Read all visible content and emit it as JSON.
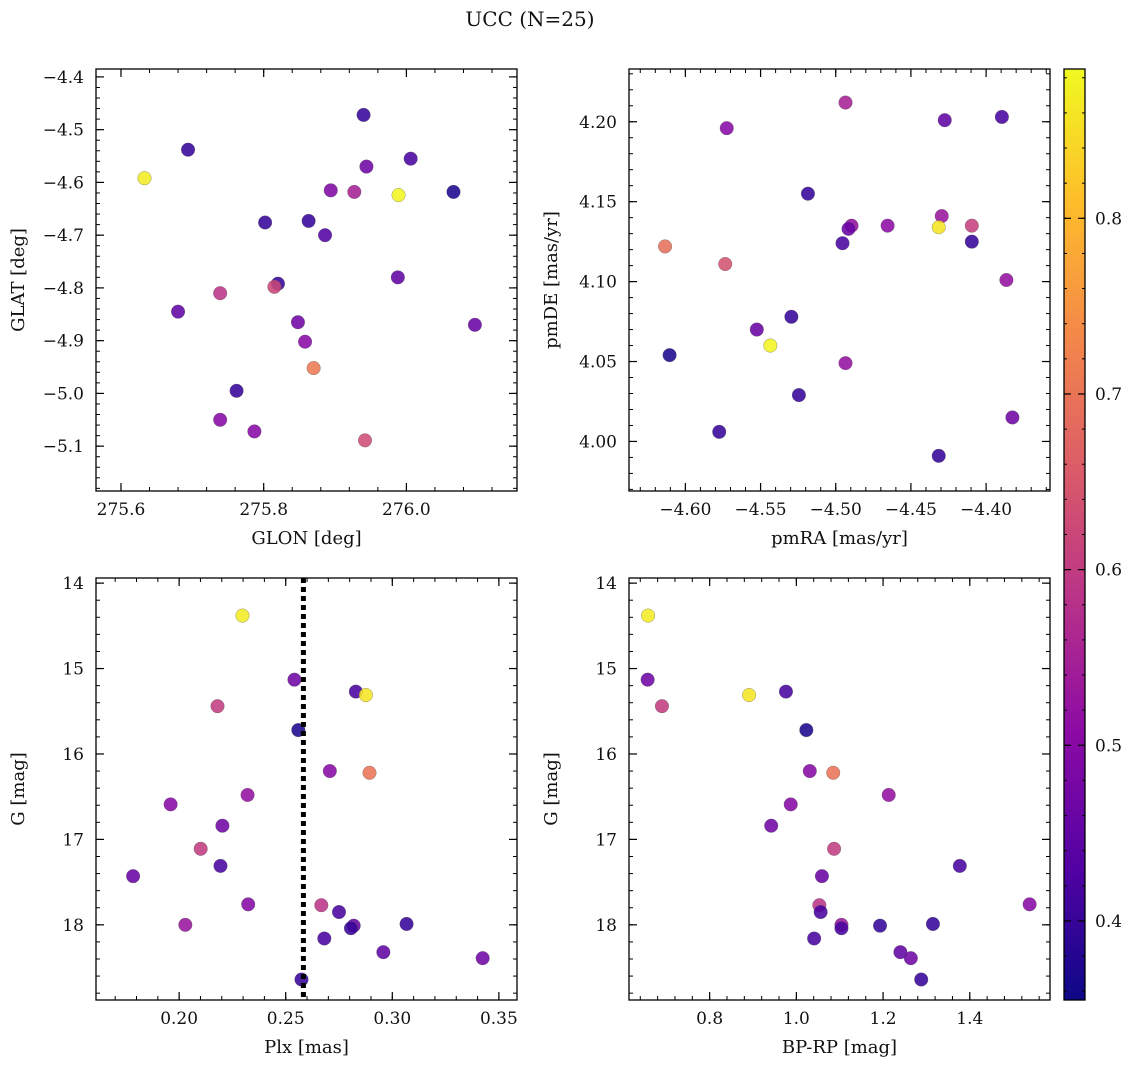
{
  "title": "UCC (N=25)",
  "colorbar": {
    "min": 0.355,
    "max": 0.885,
    "ticks": [
      0.4,
      0.5,
      0.6,
      0.7,
      0.8
    ],
    "tick_labels": [
      "0.4",
      "0.5",
      "0.6",
      "0.7",
      "0.8"
    ],
    "colormap": "plasma",
    "colors": [
      "#0d0887",
      "#5302a3",
      "#8b0aa5",
      "#b83289",
      "#db5c68",
      "#f48849",
      "#febd2a",
      "#f0f921"
    ]
  },
  "chart_data": [
    {
      "id": "glon-glat",
      "type": "scatter",
      "xlabel": "GLON [deg]",
      "ylabel": "GLAT [deg]",
      "xlim": [
        275.565,
        276.155
      ],
      "ylim": [
        -5.185,
        -4.385
      ],
      "invert_y": false,
      "xticks": [
        275.6,
        275.8,
        276.0
      ],
      "xtick_labels": [
        "275.6",
        "275.8",
        "276.0"
      ],
      "xtick_minor_step": 0.04,
      "yticks": [
        -5.1,
        -5.0,
        -4.9,
        -4.8,
        -4.7,
        -4.6,
        -4.5,
        -4.4
      ],
      "ytick_labels": [
        "−5.1",
        "−5.0",
        "−4.9",
        "−4.8",
        "−4.7",
        "−4.6",
        "−4.5",
        "−4.4"
      ],
      "ytick_minor_step": 0.02,
      "points": [
        {
          "x": 275.633,
          "y": -4.592,
          "c": 0.87
        },
        {
          "x": 275.694,
          "y": -4.538,
          "c": 0.4
        },
        {
          "x": 275.94,
          "y": -4.472,
          "c": 0.4
        },
        {
          "x": 275.944,
          "y": -4.57,
          "c": 0.47
        },
        {
          "x": 276.006,
          "y": -4.555,
          "c": 0.42
        },
        {
          "x": 275.894,
          "y": -4.615,
          "c": 0.49
        },
        {
          "x": 275.927,
          "y": -4.618,
          "c": 0.55
        },
        {
          "x": 275.989,
          "y": -4.624,
          "c": 0.88
        },
        {
          "x": 276.066,
          "y": -4.618,
          "c": 0.37
        },
        {
          "x": 275.802,
          "y": -4.676,
          "c": 0.4
        },
        {
          "x": 275.863,
          "y": -4.673,
          "c": 0.4
        },
        {
          "x": 275.886,
          "y": -4.7,
          "c": 0.43
        },
        {
          "x": 275.739,
          "y": -4.81,
          "c": 0.59
        },
        {
          "x": 275.82,
          "y": -4.792,
          "c": 0.4
        },
        {
          "x": 275.815,
          "y": -4.798,
          "c": 0.62
        },
        {
          "x": 275.988,
          "y": -4.78,
          "c": 0.45
        },
        {
          "x": 275.68,
          "y": -4.845,
          "c": 0.45
        },
        {
          "x": 275.848,
          "y": -4.865,
          "c": 0.47
        },
        {
          "x": 275.858,
          "y": -4.902,
          "c": 0.5
        },
        {
          "x": 276.096,
          "y": -4.87,
          "c": 0.46
        },
        {
          "x": 275.87,
          "y": -4.952,
          "c": 0.71
        },
        {
          "x": 275.762,
          "y": -4.995,
          "c": 0.4
        },
        {
          "x": 275.739,
          "y": -5.05,
          "c": 0.5
        },
        {
          "x": 275.787,
          "y": -5.072,
          "c": 0.5
        },
        {
          "x": 275.942,
          "y": -5.089,
          "c": 0.63
        }
      ]
    },
    {
      "id": "pmra-pmde",
      "type": "scatter",
      "xlabel": "pmRA [mas/yr]",
      "ylabel": "pmDE [mas/yr]",
      "xlim": [
        -4.6375,
        -4.3575
      ],
      "ylim": [
        3.969,
        4.233
      ],
      "invert_y": false,
      "xticks": [
        -4.6,
        -4.55,
        -4.5,
        -4.45,
        -4.4
      ],
      "xtick_labels": [
        "−4.60",
        "−4.55",
        "−4.50",
        "−4.45",
        "−4.40"
      ],
      "xtick_minor_step": 0.01,
      "yticks": [
        4.0,
        4.05,
        4.1,
        4.15,
        4.2
      ],
      "ytick_labels": [
        "4.00",
        "4.05",
        "4.10",
        "4.15",
        "4.20"
      ],
      "ytick_minor_step": 0.01,
      "points": [
        {
          "x": -4.4935,
          "y": 4.212,
          "c": 0.55
        },
        {
          "x": -4.5725,
          "y": 4.196,
          "c": 0.5
        },
        {
          "x": -4.4275,
          "y": 4.201,
          "c": 0.45
        },
        {
          "x": -4.3895,
          "y": 4.203,
          "c": 0.42
        },
        {
          "x": -4.5185,
          "y": 4.155,
          "c": 0.4
        },
        {
          "x": -4.4295,
          "y": 4.141,
          "c": 0.53
        },
        {
          "x": -4.4895,
          "y": 4.135,
          "c": 0.52
        },
        {
          "x": -4.4655,
          "y": 4.135,
          "c": 0.51
        },
        {
          "x": -4.4915,
          "y": 4.133,
          "c": 0.46
        },
        {
          "x": -4.4315,
          "y": 4.134,
          "c": 0.86
        },
        {
          "x": -4.4095,
          "y": 4.135,
          "c": 0.61
        },
        {
          "x": -4.4955,
          "y": 4.124,
          "c": 0.42
        },
        {
          "x": -4.4095,
          "y": 4.125,
          "c": 0.4
        },
        {
          "x": -4.6135,
          "y": 4.122,
          "c": 0.69
        },
        {
          "x": -4.5735,
          "y": 4.111,
          "c": 0.64
        },
        {
          "x": -4.3865,
          "y": 4.101,
          "c": 0.52
        },
        {
          "x": -4.5295,
          "y": 4.078,
          "c": 0.4
        },
        {
          "x": -4.5525,
          "y": 4.07,
          "c": 0.46
        },
        {
          "x": -4.5435,
          "y": 4.06,
          "c": 0.88
        },
        {
          "x": -4.6105,
          "y": 4.054,
          "c": 0.37
        },
        {
          "x": -4.4935,
          "y": 4.049,
          "c": 0.52
        },
        {
          "x": -4.5245,
          "y": 4.029,
          "c": 0.4
        },
        {
          "x": -4.3825,
          "y": 4.015,
          "c": 0.47
        },
        {
          "x": -4.5775,
          "y": 4.006,
          "c": 0.4
        },
        {
          "x": -4.4315,
          "y": 3.991,
          "c": 0.4
        }
      ]
    },
    {
      "id": "plx-g",
      "type": "scatter",
      "xlabel": "Plx [mas]",
      "ylabel": "G [mag]",
      "xlim": [
        0.161,
        0.3585
      ],
      "ylim": [
        13.94,
        18.88
      ],
      "invert_y": true,
      "xticks": [
        0.2,
        0.25,
        0.3,
        0.35
      ],
      "xtick_labels": [
        "0.20",
        "0.25",
        "0.30",
        "0.35"
      ],
      "xtick_minor_step": 0.01,
      "yticks": [
        14,
        15,
        16,
        17,
        18
      ],
      "ytick_labels": [
        "14",
        "15",
        "16",
        "17",
        "18"
      ],
      "ytick_minor_step": 0.2,
      "vline": {
        "x": 0.2583,
        "style": "dotted",
        "color": "#000000"
      },
      "points": [
        {
          "x": 0.2297,
          "y": 14.38,
          "c": 0.87
        },
        {
          "x": 0.2541,
          "y": 15.13,
          "c": 0.47
        },
        {
          "x": 0.2829,
          "y": 15.27,
          "c": 0.42
        },
        {
          "x": 0.2876,
          "y": 15.31,
          "c": 0.86
        },
        {
          "x": 0.218,
          "y": 15.44,
          "c": 0.6
        },
        {
          "x": 0.2559,
          "y": 15.72,
          "c": 0.37
        },
        {
          "x": 0.2707,
          "y": 16.2,
          "c": 0.5
        },
        {
          "x": 0.2893,
          "y": 16.22,
          "c": 0.7
        },
        {
          "x": 0.2321,
          "y": 16.48,
          "c": 0.52
        },
        {
          "x": 0.196,
          "y": 16.59,
          "c": 0.5
        },
        {
          "x": 0.2203,
          "y": 16.84,
          "c": 0.47
        },
        {
          "x": 0.2101,
          "y": 17.11,
          "c": 0.6
        },
        {
          "x": 0.2194,
          "y": 17.31,
          "c": 0.42
        },
        {
          "x": 0.1784,
          "y": 17.43,
          "c": 0.46
        },
        {
          "x": 0.2324,
          "y": 17.76,
          "c": 0.5
        },
        {
          "x": 0.2667,
          "y": 17.77,
          "c": 0.59
        },
        {
          "x": 0.275,
          "y": 17.85,
          "c": 0.42
        },
        {
          "x": 0.2029,
          "y": 18.0,
          "c": 0.53
        },
        {
          "x": 0.2819,
          "y": 18.01,
          "c": 0.46
        },
        {
          "x": 0.3067,
          "y": 17.99,
          "c": 0.4
        },
        {
          "x": 0.2806,
          "y": 18.04,
          "c": 0.4
        },
        {
          "x": 0.2681,
          "y": 18.16,
          "c": 0.42
        },
        {
          "x": 0.2958,
          "y": 18.32,
          "c": 0.45
        },
        {
          "x": 0.3424,
          "y": 18.39,
          "c": 0.47
        },
        {
          "x": 0.2574,
          "y": 18.64,
          "c": 0.4
        }
      ]
    },
    {
      "id": "bprp-g",
      "type": "scatter",
      "xlabel": "BP-RP [mag]",
      "ylabel": "G [mag]",
      "xlim": [
        0.614,
        1.585
      ],
      "ylim": [
        13.94,
        18.88
      ],
      "invert_y": true,
      "xticks": [
        0.8,
        1.0,
        1.2,
        1.4
      ],
      "xtick_labels": [
        "0.8",
        "1.0",
        "1.2",
        "1.4"
      ],
      "xtick_minor_step": 0.04,
      "yticks": [
        14,
        15,
        16,
        17,
        18
      ],
      "ytick_labels": [
        "14",
        "15",
        "16",
        "17",
        "18"
      ],
      "ytick_minor_step": 0.2,
      "points": [
        {
          "x": 0.658,
          "y": 14.38,
          "c": 0.87
        },
        {
          "x": 0.657,
          "y": 15.13,
          "c": 0.47
        },
        {
          "x": 0.69,
          "y": 15.44,
          "c": 0.6
        },
        {
          "x": 0.891,
          "y": 15.31,
          "c": 0.86
        },
        {
          "x": 0.976,
          "y": 15.27,
          "c": 0.42
        },
        {
          "x": 1.023,
          "y": 15.72,
          "c": 0.37
        },
        {
          "x": 1.031,
          "y": 16.2,
          "c": 0.5
        },
        {
          "x": 1.085,
          "y": 16.22,
          "c": 0.7
        },
        {
          "x": 1.213,
          "y": 16.48,
          "c": 0.52
        },
        {
          "x": 0.987,
          "y": 16.59,
          "c": 0.5
        },
        {
          "x": 0.942,
          "y": 16.84,
          "c": 0.47
        },
        {
          "x": 1.087,
          "y": 17.11,
          "c": 0.6
        },
        {
          "x": 1.377,
          "y": 17.31,
          "c": 0.42
        },
        {
          "x": 1.059,
          "y": 17.43,
          "c": 0.46
        },
        {
          "x": 1.538,
          "y": 17.76,
          "c": 0.5
        },
        {
          "x": 1.053,
          "y": 17.77,
          "c": 0.59
        },
        {
          "x": 1.056,
          "y": 17.85,
          "c": 0.42
        },
        {
          "x": 1.104,
          "y": 18.0,
          "c": 0.53
        },
        {
          "x": 1.193,
          "y": 18.01,
          "c": 0.4
        },
        {
          "x": 1.315,
          "y": 17.99,
          "c": 0.4
        },
        {
          "x": 1.104,
          "y": 18.04,
          "c": 0.42
        },
        {
          "x": 1.041,
          "y": 18.16,
          "c": 0.42
        },
        {
          "x": 1.24,
          "y": 18.32,
          "c": 0.45
        },
        {
          "x": 1.264,
          "y": 18.39,
          "c": 0.47
        },
        {
          "x": 1.288,
          "y": 18.64,
          "c": 0.4
        }
      ]
    }
  ]
}
